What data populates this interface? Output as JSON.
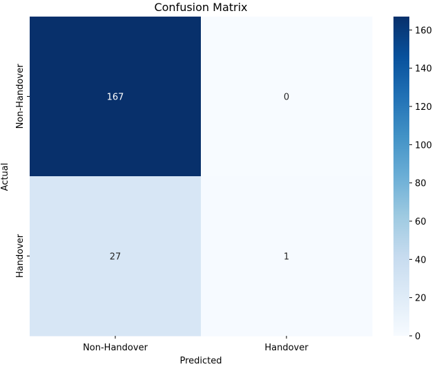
{
  "chart_data": {
    "type": "heatmap",
    "title": "Confusion Matrix",
    "xlabel": "Predicted",
    "ylabel": "Actual",
    "x_categories": [
      "Non-Handover",
      "Handover"
    ],
    "y_categories": [
      "Non-Handover",
      "Handover"
    ],
    "values": [
      [
        167,
        0
      ],
      [
        27,
        1
      ]
    ],
    "cell_labels": [
      [
        "167",
        "0"
      ],
      [
        "27",
        "1"
      ]
    ],
    "colormap": "Blues",
    "colormap_stops": [
      "#f7fbff",
      "#deebf7",
      "#c6dbef",
      "#9ecae1",
      "#6baed6",
      "#4292c6",
      "#2171b5",
      "#08519c",
      "#08306b"
    ],
    "colorbar": {
      "range": [
        0,
        167
      ],
      "ticks": [
        0,
        20,
        40,
        60,
        80,
        100,
        120,
        140,
        160
      ],
      "tick_labels": [
        "0",
        "20",
        "40",
        "60",
        "80",
        "100",
        "120",
        "140",
        "160"
      ]
    },
    "grid": false,
    "legend": "colorbar-right"
  }
}
